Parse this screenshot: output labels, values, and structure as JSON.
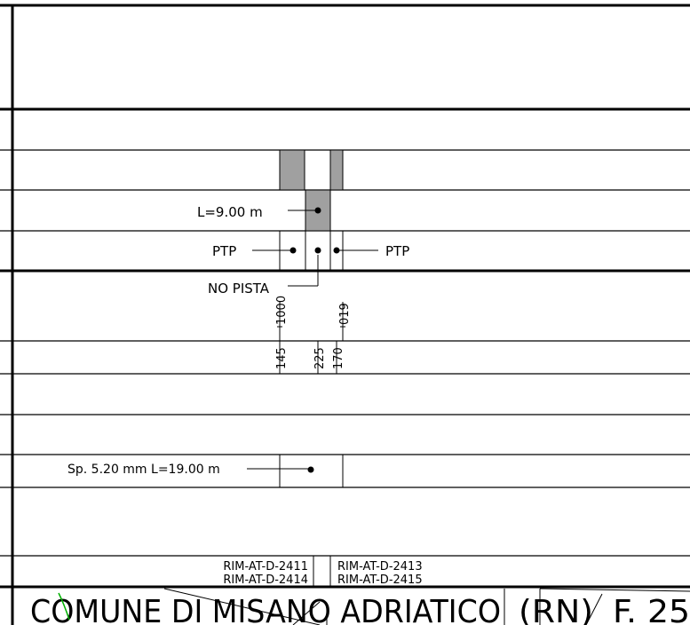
{
  "labels": {
    "length_top": "L=9.00 m",
    "ptp_left": "PTP",
    "ptp_right": "PTP",
    "no_pista": "NO PISTA",
    "chain_1000": "1000",
    "chain_019": "019",
    "offset_145": "145",
    "offset_225": "225",
    "offset_170": "170",
    "spessore": "Sp. 5.20  mm  L=19.00  m",
    "ref_1": "RIM-AT-D-2411",
    "ref_2": "RIM-AT-D-2414",
    "ref_3": "RIM-AT-D-2413",
    "ref_4": "RIM-AT-D-2415"
  },
  "title_block": {
    "comune": "COMUNE  DI  MISANO  ADRIATICO",
    "provincia": "(RN)",
    "foglio": "F. 25"
  },
  "colors": {
    "line": "#000000",
    "fill_gray": "#a0a0a0",
    "marker_green": "#00b000"
  }
}
